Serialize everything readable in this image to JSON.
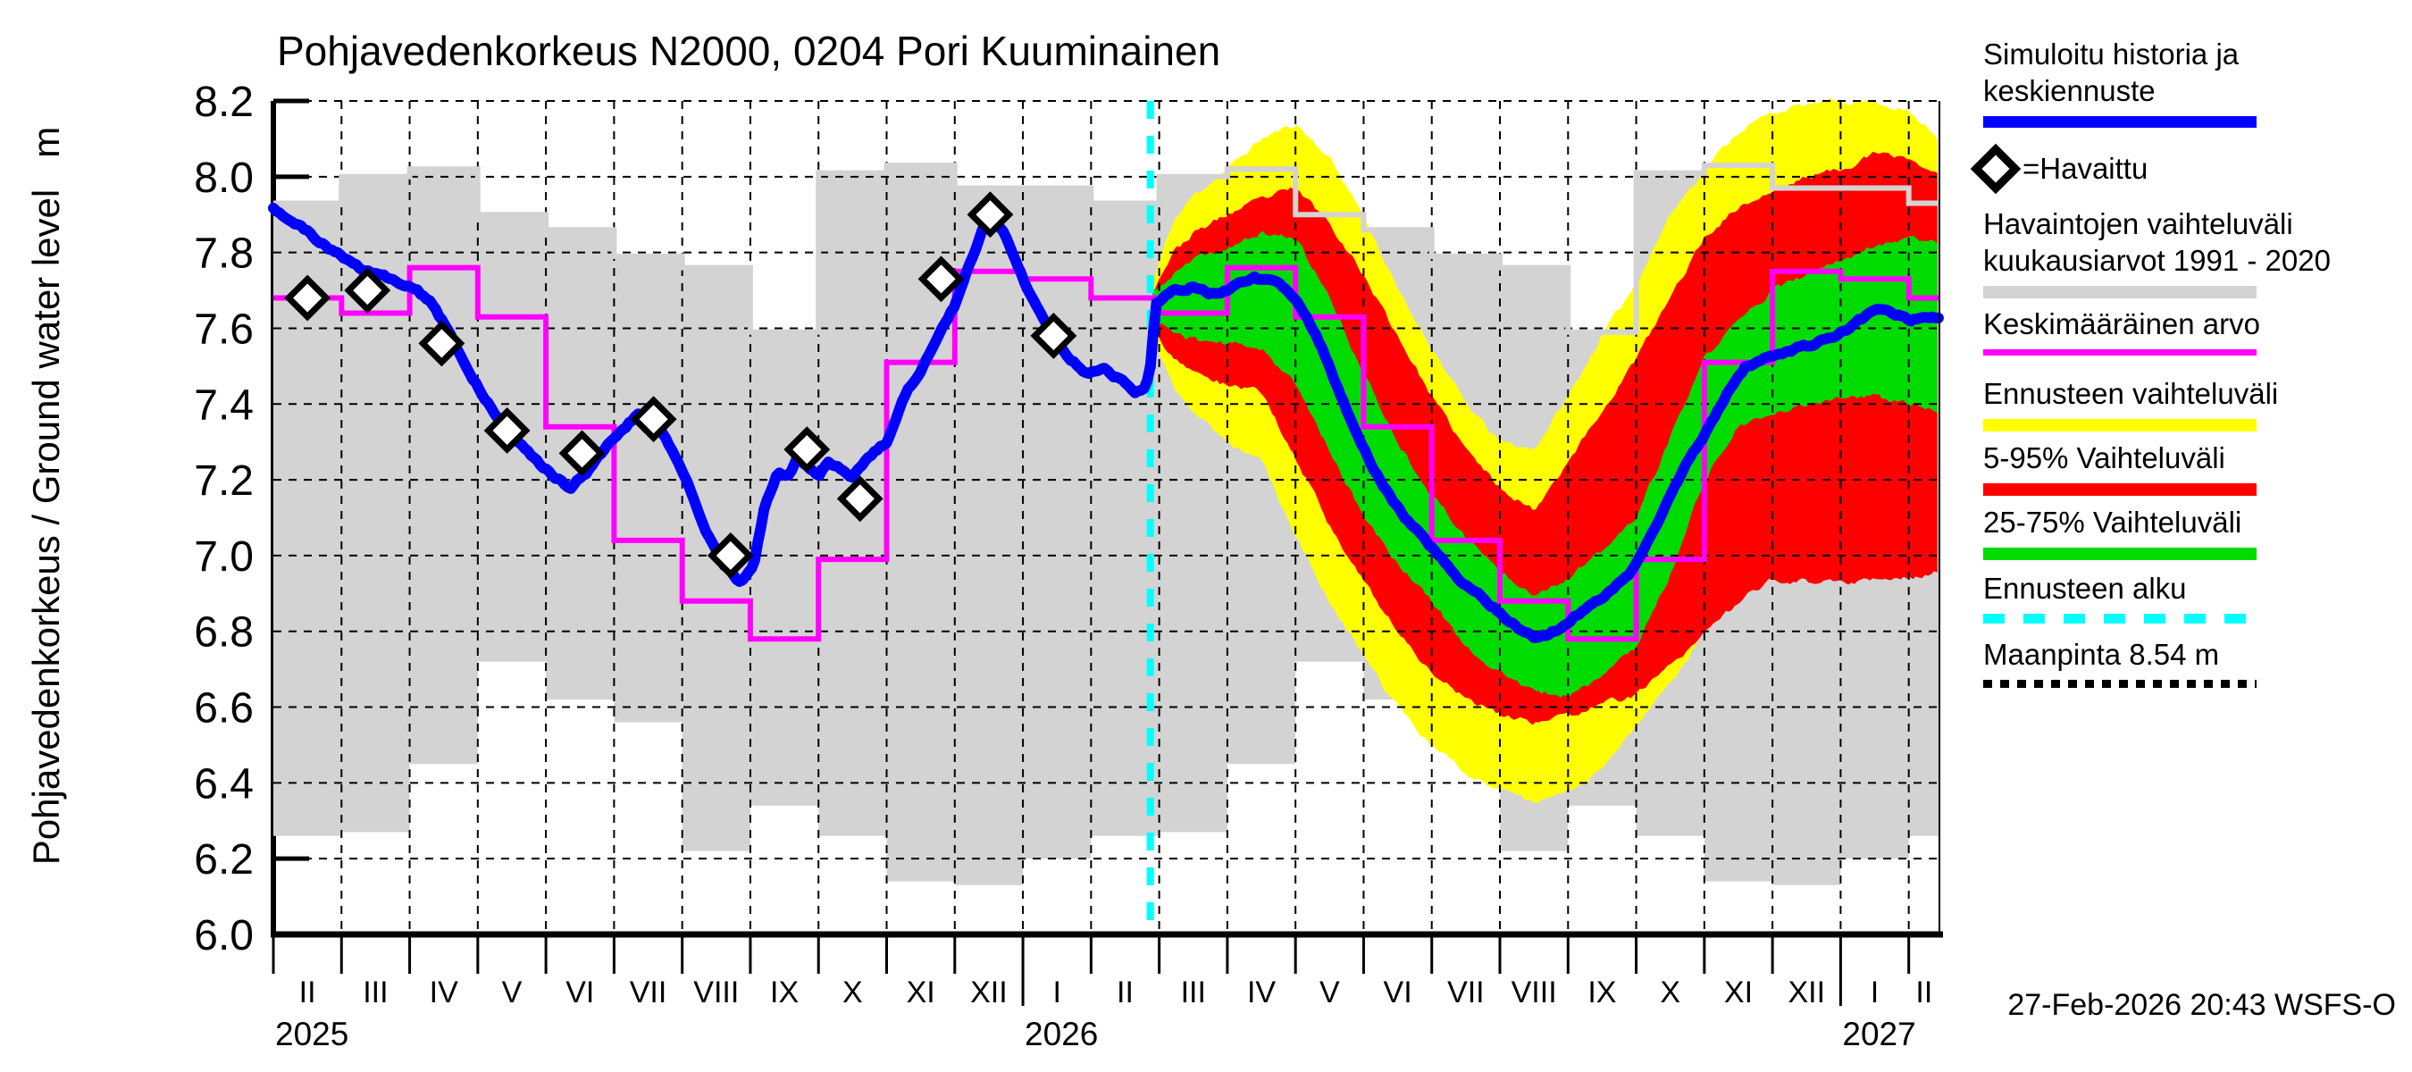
{
  "title": "Pohjavedenkorkeus N2000, 0204 Pori Kuuminainen",
  "timestamp": "27-Feb-2026 20:43 WSFS-O",
  "y_axis": {
    "label": "Pohjavedenkorkeus / Ground water level   m",
    "tick_values": [
      8.2,
      8.0,
      7.8,
      7.6,
      7.4,
      7.2,
      7.0,
      6.8,
      6.6,
      6.4,
      6.2,
      6.0
    ]
  },
  "x_axis": {
    "month_tick_labels": [
      "II",
      "III",
      "IV",
      "V",
      "VI",
      "VII",
      "VIII",
      "IX",
      "X",
      "XI",
      "XII",
      "I",
      "II",
      "III",
      "IV",
      "V",
      "VI",
      "VII",
      "VIII",
      "IX",
      "X",
      "XI",
      "XII",
      "I",
      "II"
    ],
    "years": [
      {
        "label": "2025",
        "month_index": 0
      },
      {
        "label": "2026",
        "month_index": 11
      },
      {
        "label": "2027",
        "month_index": 23
      }
    ]
  },
  "legend": {
    "simulated": {
      "line1": "Simuloitu historia ja",
      "line2": "keskiennuste"
    },
    "observed": {
      "label": "=Havaittu",
      "symbol": "diamond-icon"
    },
    "observed_range": {
      "line1": "Havaintojen vaihteluväli",
      "line2": "kuukausiarvot 1991 - 2020"
    },
    "mean_value": {
      "label": "Keskimääräinen arvo"
    },
    "forecast_range": {
      "label": "Ennusteen vaihteluväli"
    },
    "range_5_95": {
      "label": "5-95% Vaihteluväli"
    },
    "range_25_75": {
      "label": "25-75% Vaihteluväli"
    },
    "forecast_start": {
      "label": "Ennusteen alku"
    },
    "ground_surface": {
      "label": "Maanpinta 8.54 m"
    }
  },
  "colors": {
    "simulated_line": "#0000ff",
    "observed_range_band": "#d3d3d3",
    "mean_line": "#ff00ff",
    "forecast_range_band": "#ffff00",
    "band_5_95": "#ff0000",
    "band_25_75": "#00dc00",
    "forecast_start_line": "#00ffff",
    "ground_line": "#000000",
    "grid": "#000000"
  },
  "chart_data": {
    "type": "line",
    "title": "Pohjavedenkorkeus N2000, 0204 Pori Kuuminainen",
    "ylabel": "Pohjavedenkorkeus / Ground water level m",
    "ylim": [
      6.0,
      8.2
    ],
    "x_unit": "months since 2025-02-01",
    "x_domain": [
      0,
      24.45
    ],
    "grid": true,
    "forecast_start_x": 12.87,
    "forecast_start_date": "27-Feb-2026",
    "ground_level_m": 8.54,
    "climatology_1991_2020": {
      "start_calendar_month_index": 1,
      "month_min": [
        6.2,
        6.26,
        6.27,
        6.45,
        6.72,
        6.62,
        6.56,
        6.22,
        6.34,
        6.26,
        6.14,
        6.13
      ],
      "month_max": [
        7.97,
        7.93,
        8.0,
        8.02,
        7.9,
        7.86,
        7.79,
        7.76,
        7.59,
        8.01,
        8.03,
        7.97
      ],
      "month_mean": [
        7.73,
        7.68,
        7.64,
        7.76,
        7.63,
        7.34,
        7.04,
        6.88,
        6.78,
        6.99,
        7.51,
        7.75
      ]
    },
    "observations": [
      [
        0.5,
        7.68
      ],
      [
        1.38,
        7.7
      ],
      [
        2.47,
        7.56
      ],
      [
        3.43,
        7.33
      ],
      [
        4.53,
        7.27
      ],
      [
        5.58,
        7.36
      ],
      [
        6.71,
        7.0
      ],
      [
        7.83,
        7.28
      ],
      [
        8.61,
        7.15
      ],
      [
        9.8,
        7.73
      ],
      [
        10.52,
        7.9
      ],
      [
        11.45,
        7.58
      ]
    ],
    "simulated_history": [
      [
        0.0,
        7.92
      ],
      [
        0.3,
        7.88
      ],
      [
        0.6,
        7.84
      ],
      [
        0.9,
        7.8
      ],
      [
        1.1,
        7.78
      ],
      [
        1.35,
        7.75
      ],
      [
        1.6,
        7.74
      ],
      [
        1.85,
        7.72
      ],
      [
        2.1,
        7.7
      ],
      [
        2.35,
        7.66
      ],
      [
        2.6,
        7.58
      ],
      [
        2.85,
        7.49
      ],
      [
        3.1,
        7.42
      ],
      [
        3.35,
        7.35
      ],
      [
        3.6,
        7.3
      ],
      [
        3.85,
        7.25
      ],
      [
        4.1,
        7.21
      ],
      [
        4.35,
        7.18
      ],
      [
        4.6,
        7.22
      ],
      [
        4.85,
        7.28
      ],
      [
        5.1,
        7.33
      ],
      [
        5.35,
        7.37
      ],
      [
        5.6,
        7.36
      ],
      [
        5.85,
        7.28
      ],
      [
        6.1,
        7.18
      ],
      [
        6.35,
        7.06
      ],
      [
        6.6,
        6.98
      ],
      [
        6.85,
        6.93
      ],
      [
        7.05,
        6.98
      ],
      [
        7.2,
        7.12
      ],
      [
        7.4,
        7.22
      ],
      [
        7.55,
        7.21
      ],
      [
        7.7,
        7.26
      ],
      [
        7.85,
        7.23
      ],
      [
        8.0,
        7.21
      ],
      [
        8.15,
        7.25
      ],
      [
        8.3,
        7.23
      ],
      [
        8.5,
        7.21
      ],
      [
        8.7,
        7.25
      ],
      [
        9.0,
        7.3
      ],
      [
        9.25,
        7.42
      ],
      [
        9.5,
        7.49
      ],
      [
        9.75,
        7.58
      ],
      [
        10.0,
        7.66
      ],
      [
        10.3,
        7.81
      ],
      [
        10.5,
        7.9
      ],
      [
        10.7,
        7.86
      ],
      [
        11.0,
        7.73
      ],
      [
        11.2,
        7.66
      ],
      [
        11.45,
        7.58
      ],
      [
        11.7,
        7.52
      ],
      [
        11.95,
        7.48
      ],
      [
        12.2,
        7.5
      ],
      [
        12.45,
        7.46
      ],
      [
        12.65,
        7.43
      ],
      [
        12.8,
        7.44
      ],
      [
        12.87,
        7.5
      ]
    ],
    "forecast_median": [
      [
        12.87,
        7.5
      ],
      [
        12.95,
        7.67
      ],
      [
        13.2,
        7.7
      ],
      [
        13.5,
        7.71
      ],
      [
        13.8,
        7.69
      ],
      [
        14.1,
        7.71
      ],
      [
        14.4,
        7.73
      ],
      [
        14.7,
        7.72
      ],
      [
        15.0,
        7.68
      ],
      [
        15.2,
        7.62
      ],
      [
        15.5,
        7.5
      ],
      [
        15.8,
        7.36
      ],
      [
        16.0,
        7.28
      ],
      [
        16.3,
        7.18
      ],
      [
        16.6,
        7.1
      ],
      [
        17.0,
        7.02
      ],
      [
        17.4,
        6.94
      ],
      [
        17.8,
        6.88
      ],
      [
        18.2,
        6.82
      ],
      [
        18.5,
        6.78
      ],
      [
        18.8,
        6.8
      ],
      [
        19.1,
        6.84
      ],
      [
        19.5,
        6.89
      ],
      [
        19.9,
        6.95
      ],
      [
        20.2,
        7.05
      ],
      [
        20.5,
        7.16
      ],
      [
        20.8,
        7.26
      ],
      [
        21.0,
        7.32
      ],
      [
        21.3,
        7.42
      ],
      [
        21.6,
        7.5
      ],
      [
        22.0,
        7.53
      ],
      [
        22.4,
        7.55
      ],
      [
        22.8,
        7.57
      ],
      [
        23.2,
        7.61
      ],
      [
        23.5,
        7.65
      ],
      [
        23.8,
        7.64
      ],
      [
        24.0,
        7.62
      ],
      [
        24.2,
        7.63
      ],
      [
        24.45,
        7.63
      ]
    ],
    "forecast_bands": {
      "yellow_min_max": [
        [
          12.9,
          7.58,
          7.72
        ],
        [
          13.2,
          7.45,
          7.88
        ],
        [
          13.5,
          7.38,
          7.95
        ],
        [
          14.0,
          7.3,
          8.02
        ],
        [
          14.5,
          7.25,
          8.1
        ],
        [
          15.0,
          7.05,
          8.14
        ],
        [
          15.5,
          6.88,
          8.05
        ],
        [
          16.0,
          6.73,
          7.9
        ],
        [
          16.5,
          6.6,
          7.7
        ],
        [
          17.0,
          6.5,
          7.55
        ],
        [
          17.5,
          6.43,
          7.4
        ],
        [
          18.0,
          6.38,
          7.3
        ],
        [
          18.5,
          6.35,
          7.28
        ],
        [
          19.0,
          6.38,
          7.42
        ],
        [
          19.5,
          6.43,
          7.58
        ],
        [
          20.0,
          6.55,
          7.72
        ],
        [
          20.5,
          6.66,
          7.9
        ],
        [
          21.0,
          6.8,
          8.02
        ],
        [
          21.5,
          6.95,
          8.12
        ],
        [
          22.0,
          7.05,
          8.17
        ],
        [
          22.5,
          7.12,
          8.19
        ],
        [
          23.0,
          7.15,
          8.2
        ],
        [
          23.5,
          7.18,
          8.2
        ],
        [
          24.0,
          7.2,
          8.17
        ],
        [
          24.45,
          7.25,
          8.1
        ]
      ],
      "red_5_95": [
        [
          12.9,
          7.6,
          7.7
        ],
        [
          13.2,
          7.52,
          7.8
        ],
        [
          13.5,
          7.48,
          7.85
        ],
        [
          14.0,
          7.45,
          7.9
        ],
        [
          14.5,
          7.43,
          7.94
        ],
        [
          15.0,
          7.26,
          7.97
        ],
        [
          15.5,
          7.08,
          7.88
        ],
        [
          16.0,
          6.93,
          7.74
        ],
        [
          16.5,
          6.8,
          7.58
        ],
        [
          17.0,
          6.69,
          7.42
        ],
        [
          17.5,
          6.62,
          7.28
        ],
        [
          18.0,
          6.58,
          7.18
        ],
        [
          18.5,
          6.56,
          7.12
        ],
        [
          19.0,
          6.58,
          7.25
        ],
        [
          19.5,
          6.61,
          7.38
        ],
        [
          20.0,
          6.63,
          7.52
        ],
        [
          20.5,
          6.71,
          7.68
        ],
        [
          21.0,
          6.79,
          7.84
        ],
        [
          21.5,
          6.88,
          7.92
        ],
        [
          22.0,
          6.94,
          7.96
        ],
        [
          22.5,
          6.93,
          8.0
        ],
        [
          23.0,
          6.93,
          8.02
        ],
        [
          23.5,
          6.94,
          8.06
        ],
        [
          24.0,
          6.94,
          8.05
        ],
        [
          24.45,
          6.96,
          8.0
        ]
      ],
      "green_25_75": [
        [
          12.9,
          7.63,
          7.69
        ],
        [
          13.2,
          7.59,
          7.74
        ],
        [
          13.5,
          7.57,
          7.78
        ],
        [
          14.0,
          7.56,
          7.81
        ],
        [
          14.5,
          7.55,
          7.85
        ],
        [
          15.0,
          7.45,
          7.84
        ],
        [
          15.5,
          7.28,
          7.68
        ],
        [
          16.0,
          7.1,
          7.48
        ],
        [
          16.5,
          6.98,
          7.3
        ],
        [
          17.0,
          6.88,
          7.16
        ],
        [
          17.5,
          6.76,
          7.05
        ],
        [
          18.0,
          6.69,
          6.96
        ],
        [
          18.5,
          6.64,
          6.9
        ],
        [
          19.0,
          6.63,
          6.94
        ],
        [
          19.5,
          6.68,
          7.01
        ],
        [
          20.0,
          6.76,
          7.1
        ],
        [
          20.5,
          6.95,
          7.31
        ],
        [
          21.0,
          7.2,
          7.52
        ],
        [
          21.5,
          7.34,
          7.62
        ],
        [
          22.0,
          7.37,
          7.7
        ],
        [
          22.5,
          7.4,
          7.74
        ],
        [
          23.0,
          7.42,
          7.78
        ],
        [
          23.5,
          7.42,
          7.82
        ],
        [
          24.0,
          7.4,
          7.84
        ],
        [
          24.45,
          7.38,
          7.83
        ]
      ]
    }
  }
}
